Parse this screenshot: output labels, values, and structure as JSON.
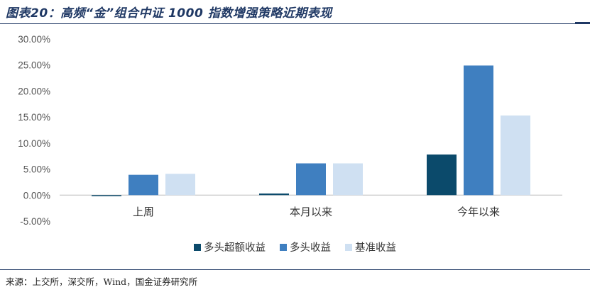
{
  "header": {
    "title": "图表20：高频“金”组合中证 1000 指数增强策略近期表现"
  },
  "footer": {
    "source": "来源：上交所，深交所，Wind，国金证券研究所"
  },
  "colors": {
    "series_1": "#0b4a6b",
    "series_2": "#3f7fc0",
    "series_3": "#cfe0f2"
  },
  "chart_data": {
    "type": "bar",
    "categories": [
      "上周",
      "本月以来",
      "今年以来"
    ],
    "series": [
      {
        "name": "多头超额收益",
        "values": [
          -0.2,
          0.3,
          7.8
        ]
      },
      {
        "name": "多头收益",
        "values": [
          3.9,
          6.1,
          24.9
        ]
      },
      {
        "name": "基准收益",
        "values": [
          4.1,
          6.1,
          15.3
        ]
      }
    ],
    "ylim": [
      -5,
      30
    ],
    "yticks": [
      "-5.00%",
      "0.00%",
      "5.00%",
      "10.00%",
      "15.00%",
      "20.00%",
      "25.00%",
      "30.00%"
    ],
    "ytick_values": [
      -5,
      0,
      5,
      10,
      15,
      20,
      25,
      30
    ],
    "legend_position": "bottom",
    "grid": false
  }
}
